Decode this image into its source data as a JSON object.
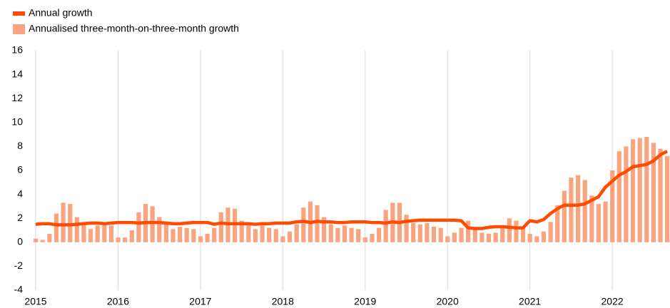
{
  "chart_data": {
    "type": "bar-line",
    "categories": [
      "2015",
      null,
      null,
      null,
      null,
      null,
      null,
      null,
      null,
      null,
      null,
      null,
      "2016",
      null,
      null,
      null,
      null,
      null,
      null,
      null,
      null,
      null,
      null,
      null,
      "2017",
      null,
      null,
      null,
      null,
      null,
      null,
      null,
      null,
      null,
      null,
      null,
      "2018",
      null,
      null,
      null,
      null,
      null,
      null,
      null,
      null,
      null,
      null,
      null,
      "2019",
      null,
      null,
      null,
      null,
      null,
      null,
      null,
      null,
      null,
      null,
      null,
      "2020",
      null,
      null,
      null,
      null,
      null,
      null,
      null,
      null,
      null,
      null,
      null,
      "2021",
      null,
      null,
      null,
      null,
      null,
      null,
      null,
      null,
      null,
      null,
      null,
      "2022",
      null,
      null,
      null,
      null,
      null,
      null,
      null,
      null
    ],
    "series": [
      {
        "name": "Annual growth",
        "type": "line",
        "color": "#ff4b00",
        "values": [
          1.5,
          1.55,
          1.55,
          1.45,
          1.45,
          1.45,
          1.5,
          1.55,
          1.6,
          1.6,
          1.55,
          1.6,
          1.65,
          1.65,
          1.65,
          1.6,
          1.65,
          1.65,
          1.65,
          1.6,
          1.55,
          1.55,
          1.6,
          1.65,
          1.65,
          1.65,
          1.5,
          1.6,
          1.55,
          1.55,
          1.55,
          1.55,
          1.5,
          1.55,
          1.55,
          1.6,
          1.6,
          1.6,
          1.7,
          1.75,
          1.65,
          1.75,
          1.7,
          1.7,
          1.65,
          1.65,
          1.7,
          1.7,
          1.7,
          1.65,
          1.65,
          1.6,
          1.7,
          1.65,
          1.75,
          1.8,
          1.85,
          1.85,
          1.85,
          1.85,
          1.85,
          1.85,
          1.8,
          1.2,
          1.15,
          1.15,
          1.25,
          1.3,
          1.3,
          1.25,
          1.2,
          1.2,
          1.8,
          1.7,
          1.9,
          2.4,
          2.8,
          3.1,
          3.1,
          3.1,
          3.2,
          3.5,
          3.8,
          4.6,
          5.1,
          5.6,
          5.9,
          6.3,
          6.4,
          6.5,
          6.8,
          7.3,
          7.6
        ]
      },
      {
        "name": "Annualised three-month-on-three-month growth",
        "type": "bar",
        "color": "#f9a47f",
        "values": [
          0.3,
          0.2,
          0.7,
          2.4,
          3.3,
          3.2,
          2.1,
          1.5,
          1.1,
          1.4,
          1.5,
          1.4,
          0.4,
          0.4,
          1.0,
          2.5,
          3.2,
          3.0,
          2.1,
          1.5,
          1.1,
          1.3,
          1.2,
          1.1,
          0.5,
          0.7,
          1.2,
          2.5,
          2.9,
          2.8,
          1.8,
          1.5,
          1.1,
          1.4,
          1.2,
          1.1,
          0.5,
          0.9,
          1.5,
          2.9,
          3.4,
          3.1,
          2.1,
          1.5,
          1.2,
          1.4,
          1.2,
          1.1,
          0.4,
          0.7,
          1.2,
          2.7,
          3.3,
          3.3,
          2.3,
          1.6,
          1.5,
          1.6,
          1.3,
          1.2,
          0.5,
          0.8,
          1.2,
          1.8,
          1.2,
          0.8,
          0.7,
          0.8,
          1.2,
          2.0,
          1.8,
          1.2,
          0.7,
          0.5,
          0.9,
          1.7,
          3.1,
          4.3,
          5.4,
          5.6,
          5.2,
          3.9,
          3.2,
          3.4,
          6.0,
          7.6,
          8.0,
          8.6,
          8.7,
          8.8,
          8.3,
          7.8,
          7.2
        ]
      }
    ],
    "ylim": [
      -4,
      16
    ],
    "yticks": [
      -4,
      -2,
      0,
      2,
      4,
      6,
      8,
      10,
      12,
      14,
      16
    ],
    "grid": true,
    "legend": "top-left"
  }
}
